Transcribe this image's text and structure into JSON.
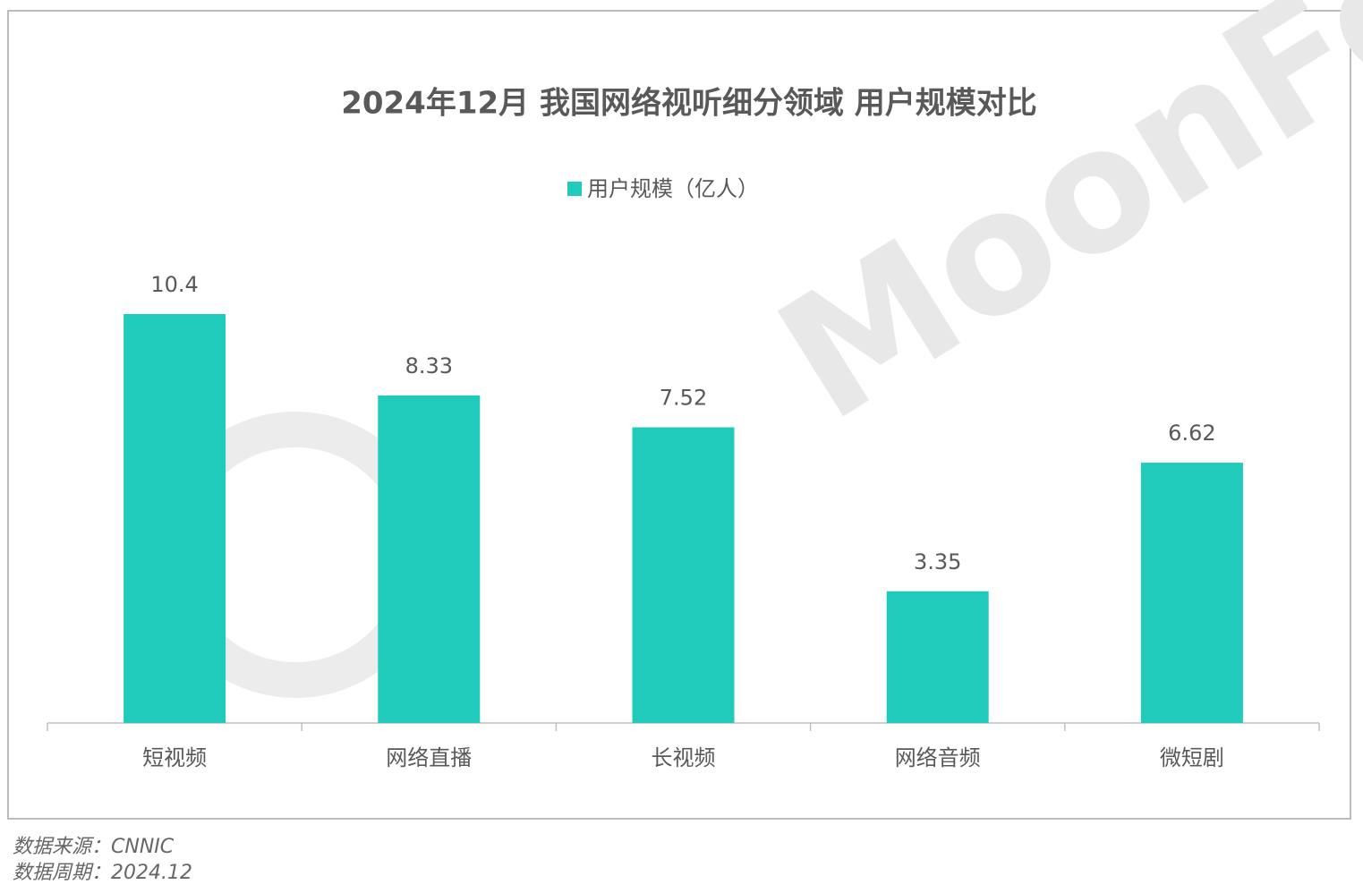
{
  "chart_data": {
    "type": "bar",
    "title": "2024年12月 我国网络视听细分领域 用户规模对比",
    "categories": [
      "短视频",
      "网络直播",
      "长视频",
      "网络音频",
      "微短剧"
    ],
    "series": [
      {
        "name": "用户规模（亿人）",
        "color": "#20cbbb",
        "values": [
          10.4,
          8.33,
          7.52,
          3.35,
          6.62
        ]
      }
    ],
    "legend": "top"
  },
  "watermark": "MoonFox",
  "footer": {
    "source": "数据来源：CNNIC",
    "period": "数据周期：2024.12"
  }
}
